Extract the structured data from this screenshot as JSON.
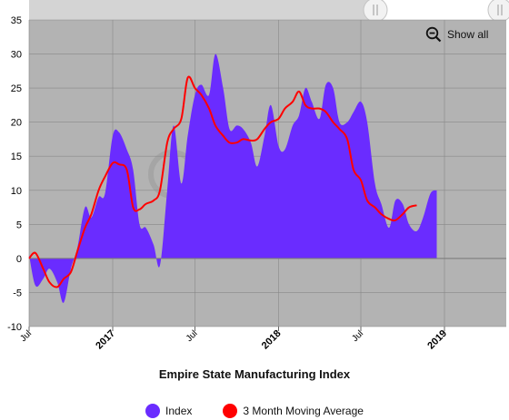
{
  "colors": {
    "index": "#6a2cff",
    "moving_average": "#ff0000",
    "plot_bg": "#b3b3b3",
    "grid": "#888888",
    "navigator_bg": "#d4d4d4"
  },
  "controls": {
    "show_all_label": "Show all",
    "show_all_icon": "zoom-out-icon",
    "navigator_handle_icon": "drag-handle-icon"
  },
  "chart_data": {
    "type": "area",
    "title": "",
    "xlabel": "Empire State Manufacturing Index",
    "ylabel": "",
    "ylim": [
      -10,
      35
    ],
    "yticks": [
      -10,
      -5,
      0,
      5,
      10,
      15,
      20,
      25,
      30,
      35
    ],
    "xticks": [
      {
        "x": "2016-07-01",
        "label": "Jul",
        "bold": false
      },
      {
        "x": "2017-01-01",
        "label": "2017",
        "bold": true
      },
      {
        "x": "2017-07-01",
        "label": "Jul",
        "bold": false
      },
      {
        "x": "2018-01-01",
        "label": "2018",
        "bold": true
      },
      {
        "x": "2018-07-01",
        "label": "Jul",
        "bold": false
      },
      {
        "x": "2019-01-01",
        "label": "2019",
        "bold": true
      }
    ],
    "xlim": [
      "2016-07-01",
      "2019-05-01"
    ],
    "grid": true,
    "legend_position": "bottom",
    "series": [
      {
        "name": "Index",
        "kind": "area",
        "points": [
          [
            "2016-07-01",
            0.5
          ],
          [
            "2016-07-15",
            -4.0
          ],
          [
            "2016-08-01",
            -3.0
          ],
          [
            "2016-08-15",
            -1.5
          ],
          [
            "2016-09-01",
            -3.5
          ],
          [
            "2016-09-15",
            -6.5
          ],
          [
            "2016-10-01",
            -1.5
          ],
          [
            "2016-10-15",
            1.5
          ],
          [
            "2016-11-01",
            7.5
          ],
          [
            "2016-11-15",
            6.0
          ],
          [
            "2016-12-01",
            9.0
          ],
          [
            "2016-12-15",
            9.5
          ],
          [
            "2017-01-01",
            18.0
          ],
          [
            "2017-01-15",
            18.5
          ],
          [
            "2017-02-01",
            16.0
          ],
          [
            "2017-02-15",
            13.0
          ],
          [
            "2017-03-01",
            5.0
          ],
          [
            "2017-03-15",
            4.5
          ],
          [
            "2017-04-01",
            2.0
          ],
          [
            "2017-04-15",
            -1.0
          ],
          [
            "2017-05-01",
            10.0
          ],
          [
            "2017-05-15",
            19.5
          ],
          [
            "2017-06-01",
            11.0
          ],
          [
            "2017-06-15",
            18.0
          ],
          [
            "2017-07-01",
            24.0
          ],
          [
            "2017-07-15",
            25.5
          ],
          [
            "2017-08-01",
            24.0
          ],
          [
            "2017-08-15",
            30.0
          ],
          [
            "2017-09-01",
            25.0
          ],
          [
            "2017-09-15",
            19.0
          ],
          [
            "2017-10-01",
            19.5
          ],
          [
            "2017-10-15",
            19.0
          ],
          [
            "2017-11-01",
            17.0
          ],
          [
            "2017-11-15",
            13.5
          ],
          [
            "2017-12-01",
            18.0
          ],
          [
            "2017-12-15",
            22.5
          ],
          [
            "2018-01-01",
            16.5
          ],
          [
            "2018-01-15",
            16.0
          ],
          [
            "2018-02-01",
            19.5
          ],
          [
            "2018-02-15",
            21.0
          ],
          [
            "2018-03-01",
            25.0
          ],
          [
            "2018-03-15",
            23.0
          ],
          [
            "2018-04-01",
            20.5
          ],
          [
            "2018-04-15",
            25.5
          ],
          [
            "2018-05-01",
            25.0
          ],
          [
            "2018-05-15",
            20.0
          ],
          [
            "2018-06-01",
            20.0
          ],
          [
            "2018-06-15",
            21.5
          ],
          [
            "2018-07-01",
            23.0
          ],
          [
            "2018-07-15",
            20.0
          ],
          [
            "2018-08-01",
            11.0
          ],
          [
            "2018-08-15",
            8.0
          ],
          [
            "2018-09-01",
            4.5
          ],
          [
            "2018-09-15",
            8.5
          ],
          [
            "2018-10-01",
            8.0
          ],
          [
            "2018-10-15",
            5.0
          ],
          [
            "2018-11-01",
            4.0
          ],
          [
            "2018-11-15",
            6.0
          ],
          [
            "2018-12-01",
            9.5
          ],
          [
            "2018-12-15",
            10.0
          ]
        ]
      },
      {
        "name": "3 Month Moving Average",
        "kind": "line",
        "points": [
          [
            "2016-07-01",
            0.0
          ],
          [
            "2016-07-15",
            0.8
          ],
          [
            "2016-08-01",
            -1.5
          ],
          [
            "2016-08-15",
            -3.5
          ],
          [
            "2016-09-01",
            -4.2
          ],
          [
            "2016-09-15",
            -3.0
          ],
          [
            "2016-10-01",
            -2.0
          ],
          [
            "2016-10-15",
            1.0
          ],
          [
            "2016-11-01",
            4.5
          ],
          [
            "2016-11-15",
            6.5
          ],
          [
            "2016-12-01",
            10.0
          ],
          [
            "2016-12-15",
            12.0
          ],
          [
            "2017-01-01",
            14.0
          ],
          [
            "2017-01-15",
            13.8
          ],
          [
            "2017-02-01",
            13.0
          ],
          [
            "2017-02-15",
            7.5
          ],
          [
            "2017-03-01",
            7.2
          ],
          [
            "2017-03-15",
            8.0
          ],
          [
            "2017-04-01",
            8.5
          ],
          [
            "2017-04-15",
            10.0
          ],
          [
            "2017-05-01",
            17.0
          ],
          [
            "2017-05-15",
            19.0
          ],
          [
            "2017-06-01",
            20.5
          ],
          [
            "2017-06-15",
            26.5
          ],
          [
            "2017-07-01",
            25.0
          ],
          [
            "2017-07-15",
            24.0
          ],
          [
            "2017-08-01",
            22.0
          ],
          [
            "2017-08-15",
            19.5
          ],
          [
            "2017-09-01",
            18.0
          ],
          [
            "2017-09-15",
            17.0
          ],
          [
            "2017-10-01",
            17.0
          ],
          [
            "2017-10-15",
            17.5
          ],
          [
            "2017-11-01",
            17.3
          ],
          [
            "2017-11-15",
            17.5
          ],
          [
            "2017-12-01",
            19.0
          ],
          [
            "2017-12-15",
            20.0
          ],
          [
            "2018-01-01",
            20.5
          ],
          [
            "2018-01-15",
            22.0
          ],
          [
            "2018-02-01",
            23.0
          ],
          [
            "2018-02-15",
            24.5
          ],
          [
            "2018-03-01",
            22.5
          ],
          [
            "2018-03-15",
            22.0
          ],
          [
            "2018-04-01",
            22.0
          ],
          [
            "2018-04-15",
            21.5
          ],
          [
            "2018-05-01",
            20.0
          ],
          [
            "2018-05-15",
            19.0
          ],
          [
            "2018-06-01",
            17.5
          ],
          [
            "2018-06-15",
            13.0
          ],
          [
            "2018-07-01",
            11.5
          ],
          [
            "2018-07-15",
            8.5
          ],
          [
            "2018-08-01",
            7.5
          ],
          [
            "2018-08-15",
            6.5
          ],
          [
            "2018-09-01",
            5.8
          ],
          [
            "2018-09-15",
            5.6
          ],
          [
            "2018-10-01",
            6.5
          ],
          [
            "2018-10-15",
            7.5
          ],
          [
            "2018-11-01",
            7.8
          ]
        ]
      }
    ]
  }
}
